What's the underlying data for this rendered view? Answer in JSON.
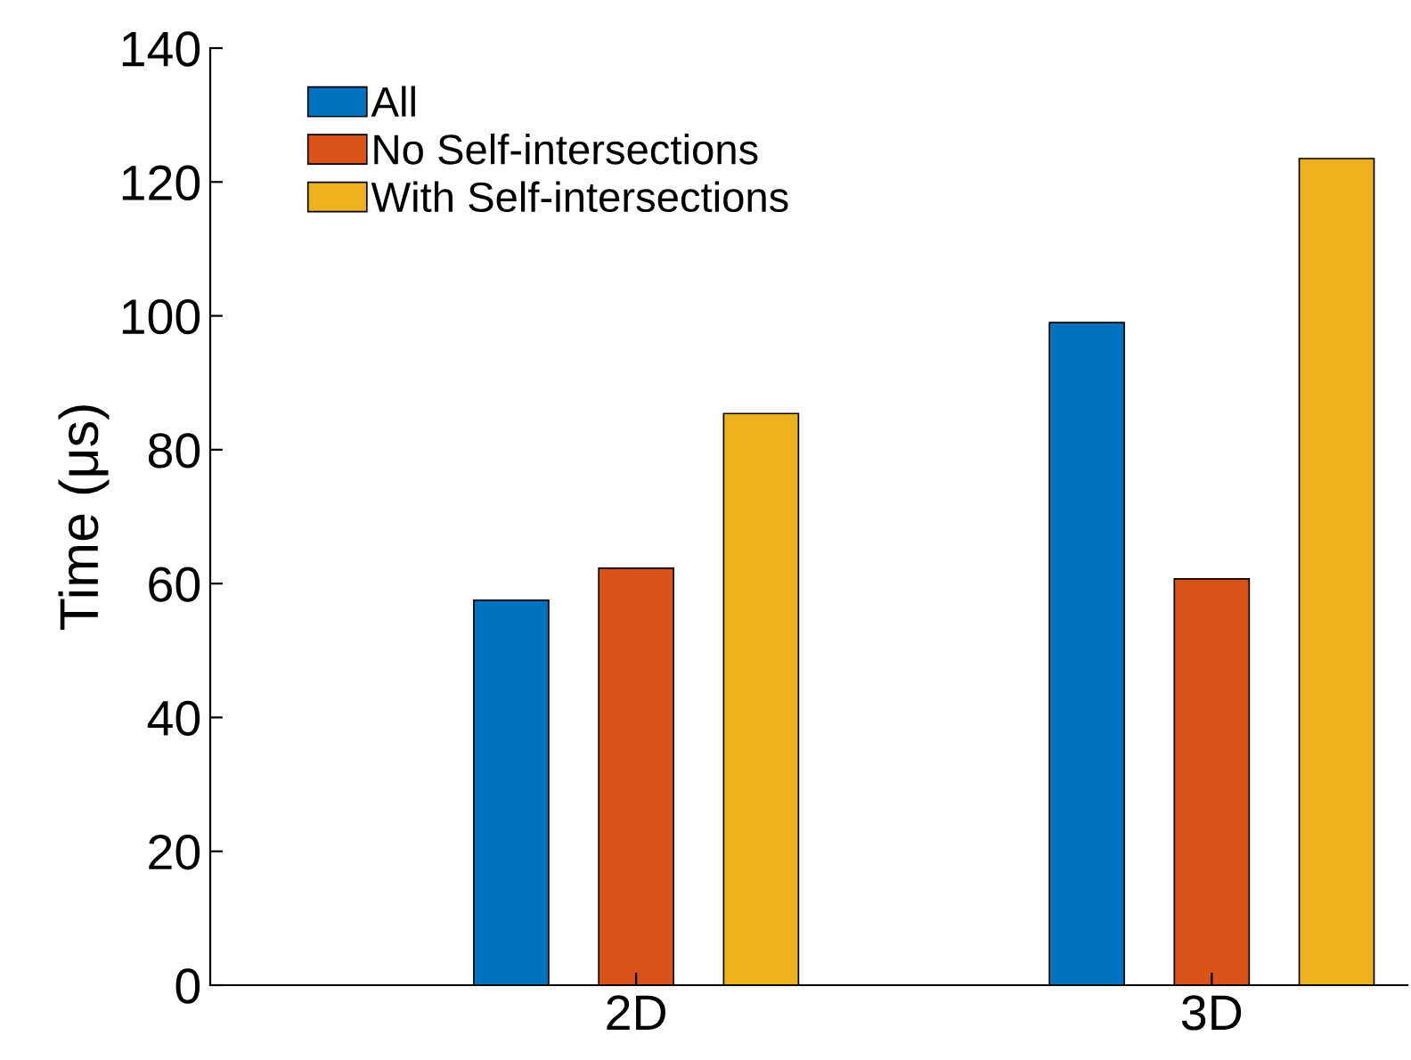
{
  "chart_data": {
    "type": "bar",
    "ylabel": "Time (μs)",
    "categories": [
      "2D",
      "3D"
    ],
    "series": [
      {
        "name": "All",
        "color": "#0072bd",
        "values": [
          57.5,
          99.0
        ]
      },
      {
        "name": "No Self-intersections",
        "color": "#d95319",
        "values": [
          62.3,
          60.7
        ]
      },
      {
        "name": "With Self-intersections",
        "color": "#edb120",
        "values": [
          85.4,
          123.5
        ]
      }
    ],
    "ylim": [
      0,
      140
    ],
    "yticks": [
      0,
      20,
      40,
      60,
      80,
      100,
      120,
      140
    ],
    "grid": false,
    "legend": "top left"
  }
}
